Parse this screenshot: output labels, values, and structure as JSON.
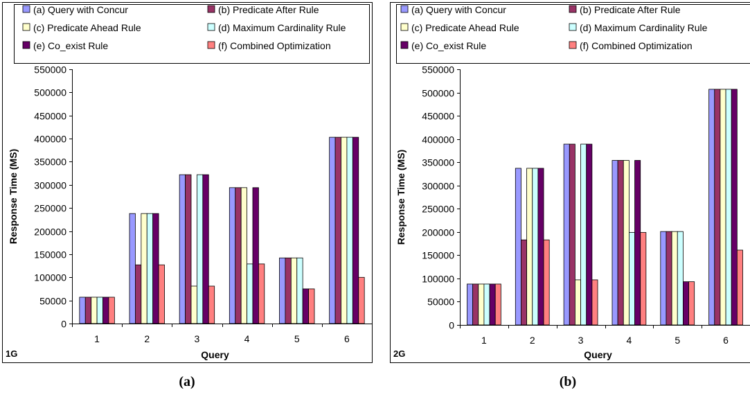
{
  "colors": {
    "a": "#9999ff",
    "b": "#993366",
    "c": "#ffffcc",
    "d": "#ccffff",
    "e": "#660066",
    "f": "#ff8080"
  },
  "captions": [
    "(a)",
    "(b)"
  ],
  "chart_data": [
    {
      "type": "bar",
      "title": "",
      "corner_label": "1G",
      "xlabel": "Query",
      "ylabel": "Response Time (MS)",
      "ylim": [
        0,
        550000
      ],
      "yticks": [
        0,
        50000,
        100000,
        150000,
        200000,
        250000,
        300000,
        350000,
        400000,
        450000,
        500000,
        550000
      ],
      "ytick_labels": [
        "0",
        "50000",
        "100000",
        "150000",
        "200000",
        "250000",
        "300000",
        "350000",
        "400000",
        "450000",
        "500000",
        "550000"
      ],
      "categories": [
        "1",
        "2",
        "3",
        "4",
        "5",
        "6"
      ],
      "legend_position": "top",
      "series": [
        {
          "name": "(a) Query with Concur",
          "color_key": "a",
          "values": [
            57000,
            238000,
            322000,
            294000,
            142000,
            403000
          ]
        },
        {
          "name": "(b) Predicate After Rule",
          "color_key": "b",
          "values": [
            57000,
            127000,
            322000,
            294000,
            142000,
            403000
          ]
        },
        {
          "name": "(c) Predicate Ahead Rule",
          "color_key": "c",
          "values": [
            57000,
            238000,
            81000,
            294000,
            142000,
            403000
          ]
        },
        {
          "name": "(d) Maximum Cardinality Rule",
          "color_key": "d",
          "values": [
            57000,
            238000,
            322000,
            129000,
            142000,
            403000
          ]
        },
        {
          "name": "(e) Co_exist Rule",
          "color_key": "e",
          "values": [
            57000,
            238000,
            322000,
            294000,
            75000,
            403000
          ]
        },
        {
          "name": "(f) Combined Optimization",
          "color_key": "f",
          "values": [
            57000,
            127000,
            81000,
            129000,
            75000,
            100000
          ]
        }
      ]
    },
    {
      "type": "bar",
      "title": "",
      "corner_label": "2G",
      "xlabel": "Query",
      "ylabel": "Response Time (MS)",
      "ylim": [
        0,
        550000
      ],
      "yticks": [
        0,
        50000,
        100000,
        150000,
        200000,
        250000,
        300000,
        350000,
        400000,
        450000,
        500000,
        550000
      ],
      "ytick_labels": [
        "0",
        "50000",
        "100000",
        "150000",
        "200000",
        "250000",
        "300000",
        "350000",
        "400000",
        "450000",
        "500000",
        "550000"
      ],
      "categories": [
        "1",
        "2",
        "3",
        "4",
        "5",
        "6"
      ],
      "legend_position": "top",
      "series": [
        {
          "name": "(a) Query with Concur",
          "color_key": "a",
          "values": [
            88000,
            337000,
            389000,
            354000,
            201000,
            507000
          ]
        },
        {
          "name": "(b) Predicate After Rule",
          "color_key": "b",
          "values": [
            88000,
            183000,
            389000,
            354000,
            201000,
            507000
          ]
        },
        {
          "name": "(c) Predicate Ahead Rule",
          "color_key": "c",
          "values": [
            88000,
            337000,
            97000,
            354000,
            201000,
            507000
          ]
        },
        {
          "name": "(d) Maximum Cardinality Rule",
          "color_key": "d",
          "values": [
            88000,
            337000,
            389000,
            199000,
            201000,
            507000
          ]
        },
        {
          "name": "(e) Co_exist Rule",
          "color_key": "e",
          "values": [
            88000,
            337000,
            389000,
            354000,
            93000,
            507000
          ]
        },
        {
          "name": "(f) Combined Optimization",
          "color_key": "f",
          "values": [
            88000,
            183000,
            97000,
            199000,
            93000,
            161000
          ]
        }
      ]
    }
  ]
}
